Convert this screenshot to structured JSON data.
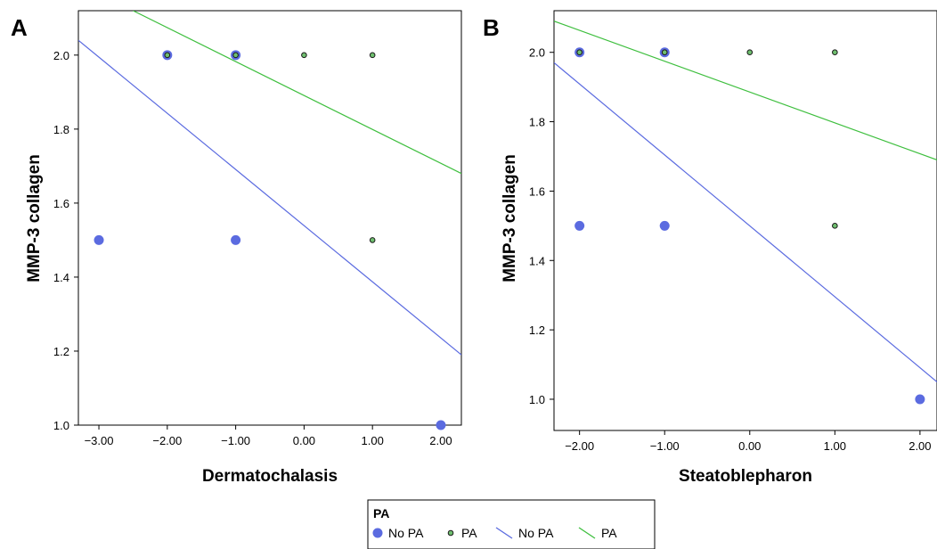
{
  "colors": {
    "no_pa": "#5b6be0",
    "pa": "#3fbf3f",
    "pa_fill": "#6fbf6f",
    "frame": "#000000"
  },
  "legend": {
    "title": "PA",
    "items": [
      {
        "label": "No PA",
        "kind": "point",
        "series": "no_pa"
      },
      {
        "label": "PA",
        "kind": "point",
        "series": "pa"
      },
      {
        "label": "No PA",
        "kind": "line",
        "series": "no_pa"
      },
      {
        "label": "PA",
        "kind": "line",
        "series": "pa"
      }
    ]
  },
  "chart_data": [
    {
      "type": "scatter",
      "panel_label": "A",
      "xlabel": "Dermatochalasis",
      "ylabel": "MMP-3 collagen",
      "xlim": [
        -3.3,
        2.3
      ],
      "ylim": [
        1.0,
        2.12
      ],
      "xticks": [
        -3,
        -2,
        -1,
        0,
        1,
        2
      ],
      "xtick_labels": [
        "−3.00",
        "−2.00",
        "−1.00",
        "0.00",
        "1.00",
        "2.00"
      ],
      "yticks": [
        1.0,
        1.2,
        1.4,
        1.6,
        1.8,
        2.0
      ],
      "ytick_labels": [
        "1.0",
        "1.2",
        "1.4",
        "1.6",
        "1.8",
        "2.0"
      ],
      "series": [
        {
          "name": "No PA",
          "kind": "points",
          "color_key": "no_pa",
          "x": [
            -3,
            -2,
            -1,
            -1,
            2
          ],
          "y": [
            1.5,
            2.0,
            2.0,
            1.5,
            1.0
          ]
        },
        {
          "name": "PA",
          "kind": "points",
          "color_key": "pa",
          "x": [
            -2,
            -1,
            0,
            1,
            1
          ],
          "y": [
            2.0,
            2.0,
            2.0,
            2.0,
            1.5
          ]
        },
        {
          "name": "No PA",
          "kind": "line",
          "color_key": "no_pa",
          "x": [
            -3.3,
            2.3
          ],
          "y": [
            2.04,
            1.19
          ]
        },
        {
          "name": "PA",
          "kind": "line",
          "color_key": "pa",
          "x": [
            -2.5,
            2.3
          ],
          "y": [
            2.12,
            1.68
          ]
        }
      ]
    },
    {
      "type": "scatter",
      "panel_label": "B",
      "xlabel": "Steatoblepharon",
      "ylabel": "MMP-3 collagen",
      "xlim": [
        -2.3,
        2.2
      ],
      "ylim": [
        0.91,
        2.12
      ],
      "xticks": [
        -2,
        -1,
        0,
        1,
        2
      ],
      "xtick_labels": [
        "−2.00",
        "−1.00",
        "0.00",
        "1.00",
        "2.00"
      ],
      "yticks": [
        1.0,
        1.2,
        1.4,
        1.6,
        1.8,
        2.0
      ],
      "ytick_labels": [
        "1.0",
        "1.2",
        "1.4",
        "1.6",
        "1.8",
        "2.0"
      ],
      "series": [
        {
          "name": "No PA",
          "kind": "points",
          "color_key": "no_pa",
          "x": [
            -2,
            -1,
            -2,
            -1,
            2
          ],
          "y": [
            2.0,
            2.0,
            1.5,
            1.5,
            1.0
          ]
        },
        {
          "name": "PA",
          "kind": "points",
          "color_key": "pa",
          "x": [
            -2,
            -1,
            0,
            1,
            1
          ],
          "y": [
            2.0,
            2.0,
            2.0,
            2.0,
            1.5
          ]
        },
        {
          "name": "No PA",
          "kind": "line",
          "color_key": "no_pa",
          "x": [
            -2.3,
            2.2
          ],
          "y": [
            1.97,
            1.05
          ]
        },
        {
          "name": "PA",
          "kind": "line",
          "color_key": "pa",
          "x": [
            -2.3,
            2.2
          ],
          "y": [
            2.09,
            1.69
          ]
        }
      ]
    }
  ]
}
